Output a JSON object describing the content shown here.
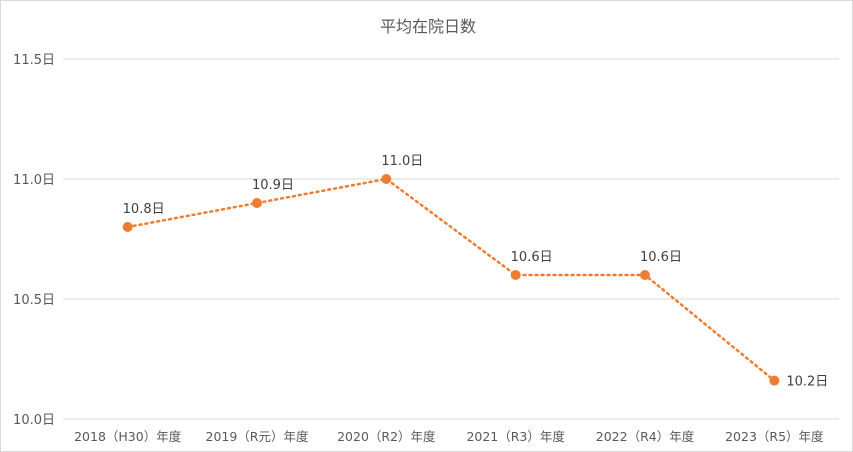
{
  "chart_data": {
    "type": "line",
    "title": "平均在院日数",
    "categories": [
      "2018（H30）年度",
      "2019（R元）年度",
      "2020（R2）年度",
      "2021（R3）年度",
      "2022（R4）年度",
      "2023（R5）年度"
    ],
    "series": [
      {
        "values": [
          10.8,
          10.9,
          11.0,
          10.6,
          10.6,
          10.16
        ],
        "data_labels": [
          "10.8日",
          "10.9日",
          "11.0日",
          "10.6日",
          "10.6日",
          "10.2日"
        ],
        "color": "#ED7D31",
        "line_style": "dotted",
        "marker": "circle"
      }
    ],
    "yticks": [
      10.0,
      10.5,
      11.0,
      11.5
    ],
    "ytick_labels": [
      "10.0日",
      "10.5日",
      "11.0日",
      "11.5日"
    ],
    "ylim": [
      10.0,
      11.5
    ],
    "xlabel": "",
    "ylabel": "",
    "grid": true,
    "legend": "none"
  }
}
